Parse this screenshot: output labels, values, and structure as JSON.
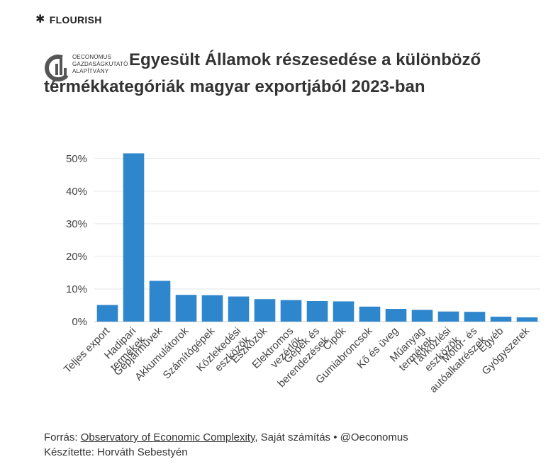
{
  "brand": {
    "name": "FLOURISH",
    "icon": "asterisk-icon"
  },
  "org": {
    "logo_lines": [
      "OECONOMUS",
      "GAZDASÁGKUTATÓ",
      "ALAPÍTVÁNY"
    ]
  },
  "title": "Egyesült Államok részesedése a különböző termékkategóriák magyar exportjából 2023-ban",
  "footer": {
    "source_prefix": "Forrás: ",
    "source_link": "Observatory of Economic Complexity",
    "source_suffix": ", Saját számítás • @Oeconomus",
    "author": "Készítette: Horváth Sebestyén"
  },
  "colors": {
    "bar": "#2e86cc",
    "grid": "#e6e6e6",
    "axis": "#cccccc"
  },
  "chart_data": {
    "type": "bar",
    "title": "Egyesült Államok részesedése a különböző termékkategóriák magyar exportjából 2023-ban",
    "xlabel": "",
    "ylabel": "",
    "ylim": [
      0,
      53
    ],
    "yticks": [
      0,
      10,
      20,
      30,
      40,
      50
    ],
    "ytick_labels": [
      "0%",
      "10%",
      "20%",
      "30%",
      "40%",
      "50%"
    ],
    "grid": true,
    "categories": [
      "Teljes export",
      "Hadipari termékek",
      "Gépjárművek",
      "Akkumulátorok",
      "Számítógépek",
      "Közlekedési eszközök",
      "Eszközök",
      "Elektromos vezérlők",
      "Gépek és berendezések",
      "Cipők",
      "Gumiabroncsok",
      "Kő és üveg",
      "Műanyag termékek",
      "Távközlési eszközök",
      "Motor- és autóalkatrészek",
      "Egyéb",
      "Gyógyszerek"
    ],
    "category_label_lines": [
      [
        "Teljes export"
      ],
      [
        "Hadipari",
        "termékek"
      ],
      [
        "Gépjárművek"
      ],
      [
        "Akkumulátorok"
      ],
      [
        "Számítógépek"
      ],
      [
        "Közlekedési",
        "eszközök"
      ],
      [
        "Eszközök"
      ],
      [
        "Elektromos",
        "vezérlők"
      ],
      [
        "Gépek és",
        "berendezések"
      ],
      [
        "Cipők"
      ],
      [
        "Gumiabroncsok"
      ],
      [
        "Kő és üveg"
      ],
      [
        "Műanyag",
        "termékek"
      ],
      [
        "Távközlési",
        "eszközök"
      ],
      [
        "Motor- és",
        "autóalkatrészek"
      ],
      [
        "Egyéb"
      ],
      [
        "Gyógyszerek"
      ]
    ],
    "values": [
      5.1,
      51.6,
      12.5,
      8.2,
      8.1,
      7.7,
      6.9,
      6.6,
      6.3,
      6.2,
      4.6,
      3.9,
      3.6,
      3.1,
      3.0,
      1.5,
      1.3
    ],
    "unit": "%"
  }
}
